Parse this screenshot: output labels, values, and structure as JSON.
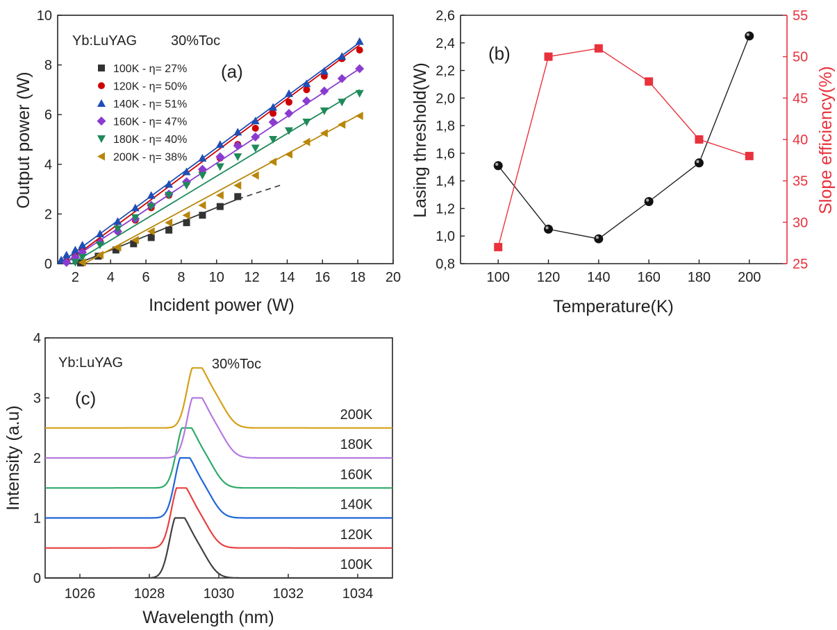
{
  "chart_data": [
    {
      "panel": "(a)",
      "type": "scatter",
      "annotation": "Yb:LuYAG",
      "annotation2": "30%Toc",
      "xlabel": "Incident power (W)",
      "ylabel": "Output power (W)",
      "xlim": [
        1,
        20
      ],
      "ylim": [
        0,
        10
      ],
      "xticks": [
        2,
        4,
        6,
        8,
        10,
        12,
        14,
        16,
        18,
        20
      ],
      "yticks": [
        0,
        2,
        4,
        6,
        8,
        10
      ],
      "legend_position": "top-left",
      "series": [
        {
          "name": "100K - η= 27%",
          "color": "#333333",
          "marker": "square",
          "x": [
            2.3,
            3.3,
            4.3,
            5.3,
            6.3,
            7.3,
            8.3,
            9.2,
            10.2,
            11.2
          ],
          "y": [
            0.03,
            0.3,
            0.55,
            0.8,
            1.05,
            1.35,
            1.65,
            1.95,
            2.3,
            2.7
          ],
          "fit_x": [
            2.1,
            11.2
          ],
          "fit_y": [
            0.0,
            2.6
          ],
          "extrapolation_x": [
            11.2,
            13.8
          ],
          "extrapolation_y": [
            2.6,
            3.2
          ]
        },
        {
          "name": "120K - η= 50%",
          "color": "#cc0000",
          "marker": "circle",
          "x": [
            1.5,
            2.0,
            2.4,
            3.4,
            4.4,
            5.4,
            6.3,
            7.3,
            8.3,
            9.2,
            10.2,
            11.2,
            12.2,
            13.2,
            14.1,
            15.1,
            16.1,
            17.1,
            18.1
          ],
          "y": [
            0.1,
            0.3,
            0.55,
            0.9,
            1.3,
            1.75,
            2.25,
            2.75,
            3.25,
            3.75,
            4.25,
            4.8,
            5.45,
            6.05,
            6.5,
            7.0,
            7.55,
            8.25,
            8.6
          ],
          "fit_x": [
            1.5,
            18.1
          ],
          "fit_y": [
            0.05,
            8.8
          ]
        },
        {
          "name": "140K - η= 51%",
          "color": "#1f4eb4",
          "marker": "triangle-up",
          "x": [
            1.2,
            1.5,
            2.0,
            2.4,
            3.4,
            4.4,
            5.4,
            6.3,
            7.3,
            8.3,
            9.2,
            10.2,
            11.2,
            12.2,
            13.2,
            14.1,
            15.1,
            16.1,
            17.1,
            18.1
          ],
          "y": [
            0.15,
            0.35,
            0.55,
            0.75,
            1.2,
            1.7,
            2.25,
            2.75,
            3.2,
            3.7,
            4.25,
            4.8,
            5.3,
            5.75,
            6.3,
            6.85,
            7.25,
            7.75,
            8.35,
            8.95
          ],
          "fit_x": [
            1.1,
            18.1
          ],
          "fit_y": [
            0.0,
            8.9
          ]
        },
        {
          "name": "160K - η= 47%",
          "color": "#8a3ccf",
          "marker": "diamond",
          "x": [
            1.5,
            2.0,
            2.4,
            3.4,
            4.4,
            5.4,
            6.3,
            7.3,
            8.3,
            9.2,
            10.2,
            11.2,
            12.2,
            13.2,
            14.1,
            15.1,
            16.1,
            17.1,
            18.1
          ],
          "y": [
            0.05,
            0.25,
            0.45,
            0.85,
            1.3,
            1.8,
            2.35,
            2.8,
            3.3,
            3.8,
            4.3,
            4.75,
            5.1,
            5.7,
            6.05,
            6.55,
            6.95,
            7.45,
            7.85
          ],
          "fit_x": [
            1.4,
            18.1
          ],
          "fit_y": [
            0.0,
            7.85
          ]
        },
        {
          "name": "180K - η= 40%",
          "color": "#1e8a5a",
          "marker": "triangle-down",
          "x": [
            2.0,
            2.4,
            3.4,
            4.4,
            5.4,
            6.3,
            7.3,
            8.3,
            9.2,
            10.2,
            11.2,
            12.2,
            13.2,
            14.1,
            15.1,
            16.1,
            17.1,
            18.1
          ],
          "y": [
            0.05,
            0.25,
            0.75,
            1.4,
            1.85,
            2.3,
            2.75,
            3.15,
            3.55,
            3.9,
            4.3,
            4.65,
            5.0,
            5.35,
            5.7,
            6.15,
            6.5,
            6.85
          ],
          "fit_x": [
            1.8,
            18.1
          ],
          "fit_y": [
            0.0,
            7.0
          ]
        },
        {
          "name": "200K - η= 38%",
          "color": "#b8860b",
          "marker": "triangle-left",
          "x": [
            2.4,
            3.4,
            4.4,
            5.4,
            6.3,
            7.3,
            8.3,
            9.2,
            10.2,
            11.2,
            12.2,
            13.2,
            14.1,
            15.1,
            16.1,
            17.1,
            18.1
          ],
          "y": [
            0.05,
            0.35,
            0.65,
            0.95,
            1.3,
            1.65,
            1.95,
            2.35,
            2.75,
            3.15,
            3.55,
            4.1,
            4.4,
            4.9,
            5.25,
            5.6,
            5.95
          ],
          "fit_x": [
            2.5,
            18.1
          ],
          "fit_y": [
            0.0,
            6.0
          ]
        }
      ]
    },
    {
      "panel": "(b)",
      "type": "line",
      "xlabel": "Temperature(K)",
      "ylabel": "Lasing threshold(W)",
      "y2label": "Slope efficiency(%)",
      "xlim": [
        85,
        215
      ],
      "ylim": [
        0.8,
        2.6
      ],
      "y2lim": [
        25,
        55
      ],
      "xticks": [
        100,
        120,
        140,
        160,
        180,
        200
      ],
      "yticks": [
        "0,8",
        "1,0",
        "1,2",
        "1,4",
        "1,6",
        "1,8",
        "2,0",
        "2,2",
        "2,4",
        "2,6"
      ],
      "y2ticks": [
        25,
        30,
        35,
        40,
        45,
        50,
        55
      ],
      "y2_color": "#e8323c",
      "series": [
        {
          "axis": "left",
          "color": "#222222",
          "marker": "sphere",
          "x": [
            100,
            120,
            140,
            160,
            180,
            200
          ],
          "y": [
            1.51,
            1.05,
            0.98,
            1.25,
            1.53,
            2.45
          ]
        },
        {
          "axis": "right",
          "color": "#e8323c",
          "marker": "square",
          "x": [
            100,
            120,
            140,
            160,
            180,
            200
          ],
          "y": [
            27,
            50,
            51,
            47,
            40,
            38
          ]
        }
      ]
    },
    {
      "panel": "(c)",
      "type": "line",
      "annotation": "Yb:LuYAG",
      "annotation2": "30%Toc",
      "xlabel": "Wavelength (nm)",
      "ylabel": "Intensity (a.u)",
      "xlim": [
        1025,
        1035
      ],
      "ylim": [
        0,
        4
      ],
      "xticks": [
        1026,
        1028,
        1030,
        1032,
        1034
      ],
      "yticks": [
        0,
        1,
        2,
        3,
        4
      ],
      "series": [
        {
          "name": "100K",
          "color": "#404040",
          "offset": 0.0,
          "peak_x": 1028.8,
          "peak_height": 1.0
        },
        {
          "name": "120K",
          "color": "#e84040",
          "offset": 0.5,
          "peak_x": 1028.85,
          "peak_height": 1.0
        },
        {
          "name": "140K",
          "color": "#1f66d6",
          "offset": 1.0,
          "peak_x": 1028.95,
          "peak_height": 1.0
        },
        {
          "name": "160K",
          "color": "#2eaa6a",
          "offset": 1.5,
          "peak_x": 1029.0,
          "peak_height": 1.0
        },
        {
          "name": "180K",
          "color": "#b47ae0",
          "offset": 2.0,
          "peak_x": 1029.3,
          "peak_height": 1.0
        },
        {
          "name": "200K",
          "color": "#d4a017",
          "offset": 2.5,
          "peak_x": 1029.3,
          "peak_height": 1.0
        }
      ]
    }
  ]
}
